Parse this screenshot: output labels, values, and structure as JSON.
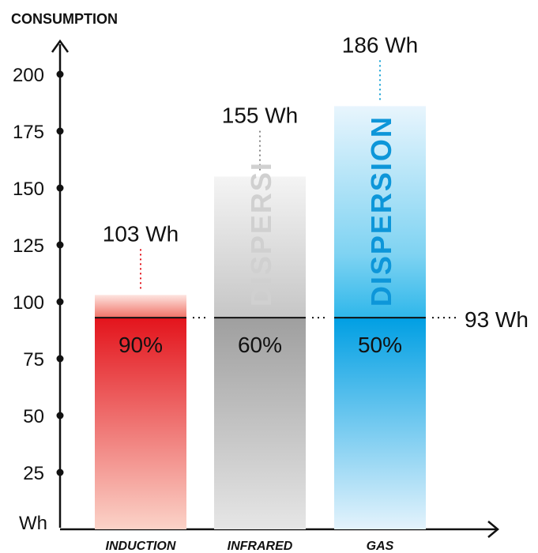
{
  "chart_data": {
    "type": "bar",
    "title": "",
    "ylabel": "CONSUMPTION",
    "yunit": "Wh",
    "ylim": [
      0,
      210
    ],
    "yticks": [
      25,
      50,
      75,
      100,
      125,
      150,
      175,
      200
    ],
    "categories": [
      "INDUCTION",
      "INFRARED",
      "GAS"
    ],
    "values": [
      103,
      155,
      186
    ],
    "value_labels": [
      "103 Wh",
      "155 Wh",
      "186 Wh"
    ],
    "efficiency_labels": [
      "90%",
      "60%",
      "50%"
    ],
    "dispersion_labels": [
      "DISPERSI",
      "DISPERSION"
    ],
    "useful_energy": 93,
    "useful_energy_label": "93 Wh",
    "colors": {
      "induction_dark": "#e3141c",
      "induction_light": "#fbd3c8",
      "infrared_dark": "#9f9f9f",
      "infrared_light": "#e6e6e6",
      "gas_dark": "#009fe3",
      "gas_light": "#e4f3fc",
      "induction_leader": "#e3141c",
      "infrared_leader": "#888888",
      "gas_leader": "#17a3d6",
      "infrared_dispersion_text": "#d0d0d0",
      "gas_dispersion_text": "#0d96d9",
      "axis": "#111111"
    }
  }
}
